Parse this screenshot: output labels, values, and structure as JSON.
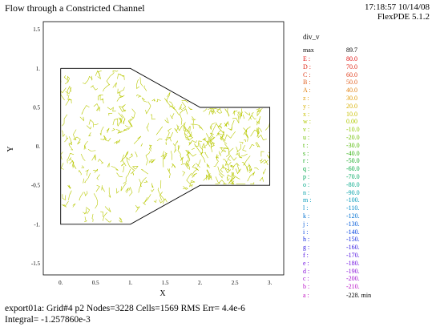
{
  "header": {
    "title": "Flow through a Constricted Channel",
    "timestamp": "17:18:57 10/14/08",
    "software": "FlexPDE 5.1.2"
  },
  "footer": {
    "line1": "export01a:  Grid#4  p2  Nodes=3228 Cells=1569 RMS Err= 4.4e-6",
    "line2": "Integral= -1.257860e-3"
  },
  "colors": {
    "contour": "#b8c800",
    "boundary": "#000000",
    "axis": "#000000"
  },
  "chart_data": {
    "type": "contour",
    "variable": "div_v",
    "xlabel": "X",
    "ylabel": "Y",
    "xlim": [
      -0.25,
      3.2
    ],
    "ylim": [
      -1.65,
      1.6
    ],
    "xticks": [
      {
        "v": 0,
        "t": "0."
      },
      {
        "v": 0.5,
        "t": "0.5"
      },
      {
        "v": 1,
        "t": "1."
      },
      {
        "v": 1.5,
        "t": "1.5"
      },
      {
        "v": 2,
        "t": "2."
      },
      {
        "v": 2.5,
        "t": "2.5"
      },
      {
        "v": 3,
        "t": "3."
      }
    ],
    "yticks": [
      {
        "v": 1.5,
        "t": "1.5"
      },
      {
        "v": 1,
        "t": "1."
      },
      {
        "v": 0.5,
        "t": "0.5"
      },
      {
        "v": 0,
        "t": "0."
      },
      {
        "v": -0.5,
        "t": "-0.5"
      },
      {
        "v": -1,
        "t": "-1."
      },
      {
        "v": -1.5,
        "t": "-1.5"
      }
    ],
    "boundary": [
      [
        0,
        1
      ],
      [
        1,
        1
      ],
      [
        2,
        0.5
      ],
      [
        3,
        0.5
      ],
      [
        3,
        -0.5
      ],
      [
        2,
        -0.5
      ],
      [
        1,
        -1
      ],
      [
        0,
        -1
      ],
      [
        0,
        1
      ]
    ],
    "legend": {
      "title": "div_v",
      "max_label": "max",
      "max_value": "89.7",
      "min_label": "a :",
      "min_value": "-228.",
      "min_suffix": "min",
      "levels": [
        {
          "label": "E :",
          "value": "80.0",
          "color": "#e01010"
        },
        {
          "label": "D :",
          "value": "70.0",
          "color": "#e02818"
        },
        {
          "label": "C :",
          "value": "60.0",
          "color": "#e04020"
        },
        {
          "label": "B :",
          "value": "50.0",
          "color": "#e06020"
        },
        {
          "label": "A :",
          "value": "40.0",
          "color": "#e08010"
        },
        {
          "label": "z :",
          "value": "30.0",
          "color": "#e09a00"
        },
        {
          "label": "y :",
          "value": "20.0",
          "color": "#d8b000"
        },
        {
          "label": "x :",
          "value": "10.0",
          "color": "#c8c000"
        },
        {
          "label": "w :",
          "value": "0.00",
          "color": "#b0c800"
        },
        {
          "label": "v :",
          "value": "-10.0",
          "color": "#90c800"
        },
        {
          "label": "u :",
          "value": "-20.0",
          "color": "#70c000"
        },
        {
          "label": "t :",
          "value": "-30.0",
          "color": "#50b800"
        },
        {
          "label": "s :",
          "value": "-40.0",
          "color": "#30b010"
        },
        {
          "label": "r :",
          "value": "-50.0",
          "color": "#10a820"
        },
        {
          "label": "q :",
          "value": "-60.0",
          "color": "#00a840"
        },
        {
          "label": "p :",
          "value": "-70.0",
          "color": "#00a860"
        },
        {
          "label": "o :",
          "value": "-80.0",
          "color": "#00a888"
        },
        {
          "label": "n :",
          "value": "-90.0",
          "color": "#00a0a8"
        },
        {
          "label": "m :",
          "value": "-100.",
          "color": "#0098b8"
        },
        {
          "label": "l :",
          "value": "-110.",
          "color": "#0088c8"
        },
        {
          "label": "k :",
          "value": "-120.",
          "color": "#0070d0"
        },
        {
          "label": "j :",
          "value": "-130.",
          "color": "#0058d8"
        },
        {
          "label": "i :",
          "value": "-140.",
          "color": "#0040e0"
        },
        {
          "label": "h :",
          "value": "-150.",
          "color": "#1028e0"
        },
        {
          "label": "g :",
          "value": "-160.",
          "color": "#3018e0"
        },
        {
          "label": "f :",
          "value": "-170.",
          "color": "#5010e0"
        },
        {
          "label": "e :",
          "value": "-180.",
          "color": "#7010e0"
        },
        {
          "label": "d :",
          "value": "-190.",
          "color": "#8810d8"
        },
        {
          "label": "c :",
          "value": "-200.",
          "color": "#a010d0"
        },
        {
          "label": "b :",
          "value": "-210.",
          "color": "#b810c8"
        }
      ]
    }
  }
}
